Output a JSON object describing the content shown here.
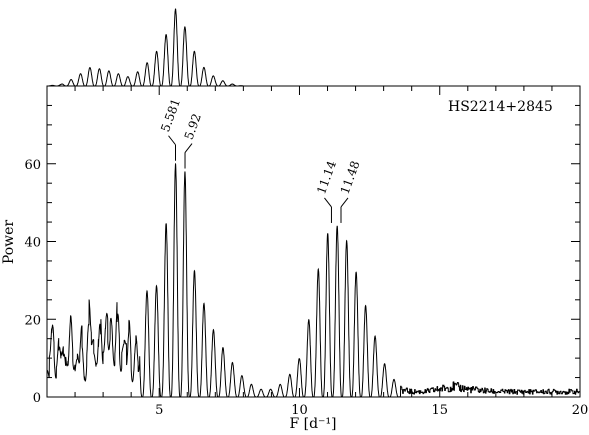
{
  "chart_data": {
    "type": "line",
    "title": "",
    "xlabel": "F [d⁻¹]",
    "ylabel": "Power",
    "xlim": [
      1.0,
      20.0
    ],
    "ylim": [
      0,
      80
    ],
    "xticks": [
      5,
      10,
      15,
      20
    ],
    "yticks": [
      0,
      20,
      40,
      60
    ],
    "grid": false,
    "legend": "none",
    "label": "HS2214+2845",
    "inset": {
      "description": "window function",
      "x": [
        1.0,
        1.5,
        2.0,
        2.5,
        3.0,
        3.5,
        4.0,
        4.5,
        5.0,
        5.3,
        5.58,
        5.9,
        6.2,
        6.5,
        7.0,
        7.5,
        8.0,
        20.0
      ],
      "y": [
        0.0,
        0.02,
        0.1,
        0.22,
        0.2,
        0.15,
        0.1,
        0.25,
        0.45,
        0.65,
        0.92,
        0.72,
        0.45,
        0.25,
        0.1,
        0.03,
        0.0,
        0.0
      ]
    },
    "series": [
      {
        "x": [
          1.0,
          1.5,
          2.0,
          2.5,
          3.0,
          3.5,
          4.0,
          4.5,
          5.0,
          5.25,
          5.581,
          5.92,
          6.2,
          6.5,
          7.0,
          7.5,
          8.0,
          8.5,
          9.0,
          9.5,
          10.0,
          10.5,
          10.8,
          11.14,
          11.48,
          11.8,
          12.1,
          12.5,
          13.0,
          13.5,
          14.0,
          14.5,
          15.0,
          15.5,
          16.0,
          17.0,
          18.0,
          19.0,
          20.0
        ],
        "y": [
          20,
          22,
          26,
          28,
          30,
          29,
          27,
          27,
          29,
          45,
          60,
          58,
          34,
          26,
          16,
          10,
          5,
          2,
          2,
          4,
          10,
          25,
          39,
          44,
          44,
          38,
          30,
          20,
          9,
          3,
          2,
          2,
          3,
          4,
          3,
          2,
          2,
          2,
          2
        ]
      }
    ],
    "annotations": [
      {
        "text": "5.581",
        "x": 5.581,
        "y": 60
      },
      {
        "text": "5.92",
        "x": 5.92,
        "y": 58
      },
      {
        "text": "11.14",
        "x": 11.14,
        "y": 44
      },
      {
        "text": "11.48",
        "x": 11.48,
        "y": 44
      }
    ]
  }
}
